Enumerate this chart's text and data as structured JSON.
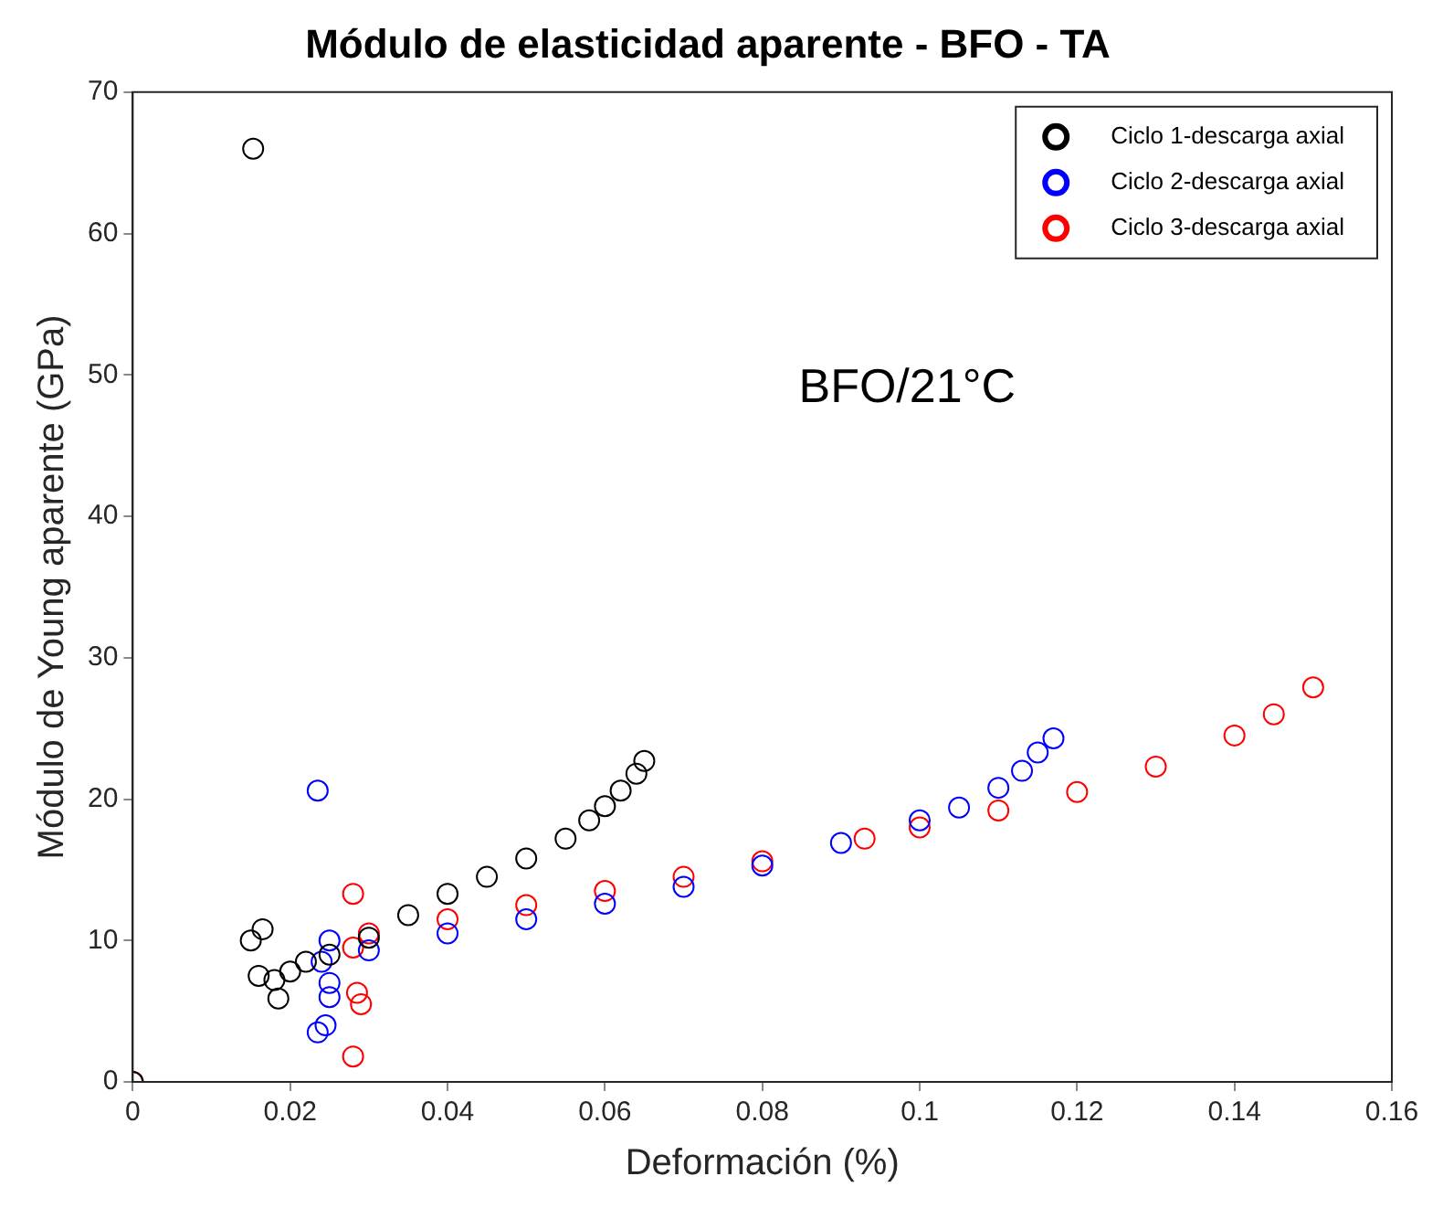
{
  "chart_data": {
    "type": "scatter",
    "title": "Módulo de elasticidad aparente - BFO - TA",
    "xlabel": "Deformación (%)",
    "ylabel": "Módulo de Young aparente (GPa)",
    "annotations": [
      "BFO/21°C"
    ],
    "xlim": [
      0,
      0.16
    ],
    "xticks": [
      0,
      0.02,
      0.04,
      0.06,
      0.08,
      0.1,
      0.12,
      0.14,
      0.16
    ],
    "ylim": [
      0,
      70
    ],
    "yticks": [
      0,
      10,
      20,
      30,
      40,
      50,
      60,
      70
    ],
    "grid": false,
    "legend": "top right",
    "marker": "circle",
    "series": [
      {
        "name": "Ciclo 1-descarga axial",
        "color": "#000000",
        "x": [
          0,
          0.0153,
          0.015,
          0.0165,
          0.0185,
          0.016,
          0.018,
          0.02,
          0.022,
          0.025,
          0.03,
          0.035,
          0.04,
          0.045,
          0.05,
          0.055,
          0.058,
          0.06,
          0.062,
          0.064,
          0.065
        ],
        "values": [
          0,
          66,
          10,
          10.8,
          5.9,
          7.5,
          7.2,
          7.8,
          8.5,
          9,
          10.2,
          11.8,
          13.3,
          14.5,
          15.8,
          17.2,
          18.5,
          19.5,
          20.6,
          21.8,
          22.7
        ]
      },
      {
        "name": "Ciclo 2-descarga axial",
        "color": "#0000ff",
        "x": [
          0.0235,
          0.0235,
          0.0245,
          0.025,
          0.025,
          0.025,
          0.024,
          0.03,
          0.04,
          0.05,
          0.06,
          0.07,
          0.08,
          0.09,
          0.1,
          0.105,
          0.11,
          0.113,
          0.115,
          0.117
        ],
        "values": [
          20.6,
          3.5,
          4,
          6,
          7,
          10,
          8.5,
          9.3,
          10.5,
          11.5,
          12.6,
          13.8,
          15.3,
          16.9,
          18.5,
          19.4,
          20.8,
          22,
          23.3,
          24.3
        ]
      },
      {
        "name": "Ciclo 3-descarga axial",
        "color": "#ff0000",
        "x": [
          0,
          0.028,
          0.028,
          0.029,
          0.0285,
          0.028,
          0.03,
          0.04,
          0.05,
          0.06,
          0.07,
          0.08,
          0.093,
          0.1,
          0.11,
          0.12,
          0.13,
          0.14,
          0.145,
          0.15
        ],
        "values": [
          0,
          13.3,
          1.8,
          5.5,
          6.3,
          9.5,
          10.5,
          11.5,
          12.5,
          13.5,
          14.5,
          15.6,
          17.2,
          18,
          19.2,
          20.5,
          22.3,
          24.5,
          26,
          27.9
        ]
      }
    ]
  }
}
